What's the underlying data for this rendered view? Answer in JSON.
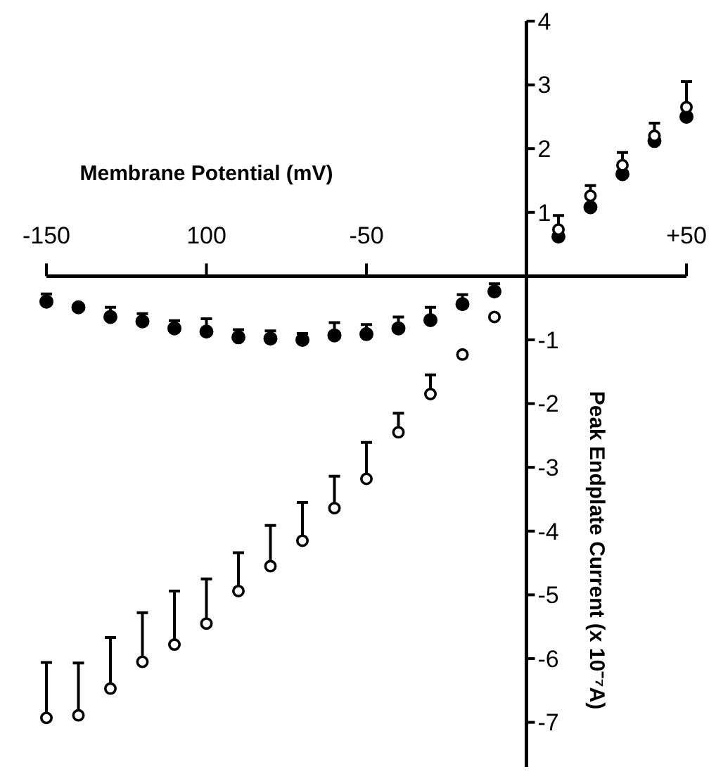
{
  "chart_data": {
    "type": "scatter",
    "xlabel": "Membrane Potential (mV)",
    "ylabel": "Peak Endplate Current (x 10⁻⁷A)",
    "x": [
      -150,
      -140,
      -130,
      -120,
      -110,
      -100,
      -90,
      -80,
      -70,
      -60,
      -50,
      -40,
      -30,
      -20,
      -10,
      10,
      20,
      30,
      40,
      50
    ],
    "xlim": [
      -150,
      50
    ],
    "xticks": [
      -150,
      {
        "value": -100,
        "label": "100"
      },
      -50,
      {
        "value": 50,
        "label": "+50"
      }
    ],
    "ylim": [
      -7.7,
      4
    ],
    "yticks": [
      {
        "value": -7,
        "label": "-7"
      },
      {
        "value": -6,
        "label": "-6"
      },
      {
        "value": -5,
        "label": "-5"
      },
      {
        "value": -4,
        "label": "-4"
      },
      {
        "value": -3,
        "label": "-3"
      },
      {
        "value": -2,
        "label": "-2"
      },
      {
        "value": -1,
        "label": "-1"
      },
      1,
      2,
      3,
      4
    ],
    "marker": "circle",
    "series": [
      {
        "color": "#000000",
        "values": [
          -0.4,
          -0.49,
          -0.64,
          -0.71,
          -0.82,
          -0.87,
          -0.96,
          -0.98,
          -1.0,
          -0.93,
          -0.91,
          -0.82,
          -0.69,
          -0.44,
          -0.24,
          0.62,
          1.08,
          1.6,
          2.12,
          2.5
        ],
        "errors": [
          [
            -0.4,
            -0.28
          ],
          null,
          [
            -0.64,
            -0.49
          ],
          [
            -0.71,
            -0.59
          ],
          [
            -0.82,
            -0.7
          ],
          [
            -0.87,
            -0.67
          ],
          [
            -0.96,
            -0.84
          ],
          [
            -0.98,
            -0.86
          ],
          [
            -1.0,
            -0.9
          ],
          [
            -0.93,
            -0.73
          ],
          [
            -0.91,
            -0.76
          ],
          [
            -0.82,
            -0.64
          ],
          [
            -0.69,
            -0.49
          ],
          [
            -0.44,
            -0.29
          ],
          [
            -0.24,
            -0.12
          ],
          null,
          null,
          null,
          null,
          null
        ]
      },
      {
        "color": "#000000",
        "values": [
          -6.93,
          -6.89,
          -6.47,
          -6.05,
          -5.78,
          -5.45,
          -4.94,
          -4.55,
          -4.15,
          -3.64,
          -3.18,
          -2.45,
          -1.85,
          -1.23,
          -0.64,
          0.73,
          1.26,
          1.74,
          2.2,
          2.65
        ],
        "errors": [
          [
            -6.93,
            -6.06
          ],
          [
            -6.89,
            -6.07
          ],
          [
            -6.47,
            -5.67
          ],
          [
            -6.05,
            -5.28
          ],
          [
            -5.78,
            -4.94
          ],
          [
            -5.45,
            -4.75
          ],
          [
            -4.94,
            -4.34
          ],
          [
            -4.55,
            -3.91
          ],
          [
            -4.15,
            -3.55
          ],
          [
            -3.64,
            -3.14
          ],
          [
            -3.18,
            -2.61
          ],
          [
            -2.45,
            -2.15
          ],
          [
            -1.85,
            -1.55
          ],
          null,
          null,
          [
            0.73,
            0.95
          ],
          [
            1.26,
            1.42
          ],
          [
            1.74,
            1.94
          ],
          [
            2.2,
            2.4
          ],
          [
            2.65,
            3.05
          ]
        ]
      }
    ]
  }
}
